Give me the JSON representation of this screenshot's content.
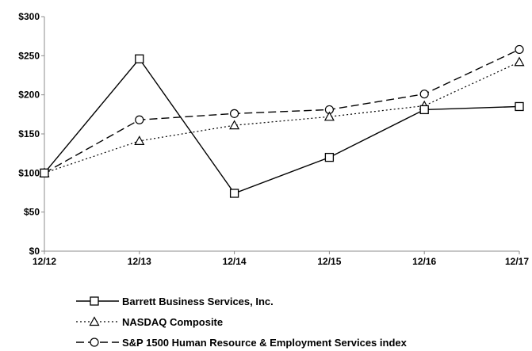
{
  "chart_data": {
    "type": "line",
    "categories": [
      "12/12",
      "12/13",
      "12/14",
      "12/15",
      "12/16",
      "12/17"
    ],
    "ylim": [
      0,
      300
    ],
    "yticks": [
      0,
      50,
      100,
      150,
      200,
      250,
      300
    ],
    "ytick_labels": [
      "$0",
      "$50",
      "$100",
      "$150",
      "$200",
      "$250",
      "$300"
    ],
    "grid": false,
    "legend_position": "bottom",
    "series": [
      {
        "name": "Barrett Business Services, Inc.",
        "values": [
          100,
          246,
          74,
          120,
          181,
          185
        ],
        "marker": "square",
        "dash": "solid",
        "color": "#000000"
      },
      {
        "name": "NASDAQ Composite",
        "values": [
          100,
          141,
          161,
          172,
          186,
          242
        ],
        "marker": "triangle",
        "dash": "dotted",
        "color": "#000000"
      },
      {
        "name": "S&P 1500 Human Resource & Employment Services index",
        "values": [
          100,
          168,
          176,
          181,
          201,
          258
        ],
        "marker": "circle",
        "dash": "dashed",
        "color": "#000000"
      }
    ]
  }
}
